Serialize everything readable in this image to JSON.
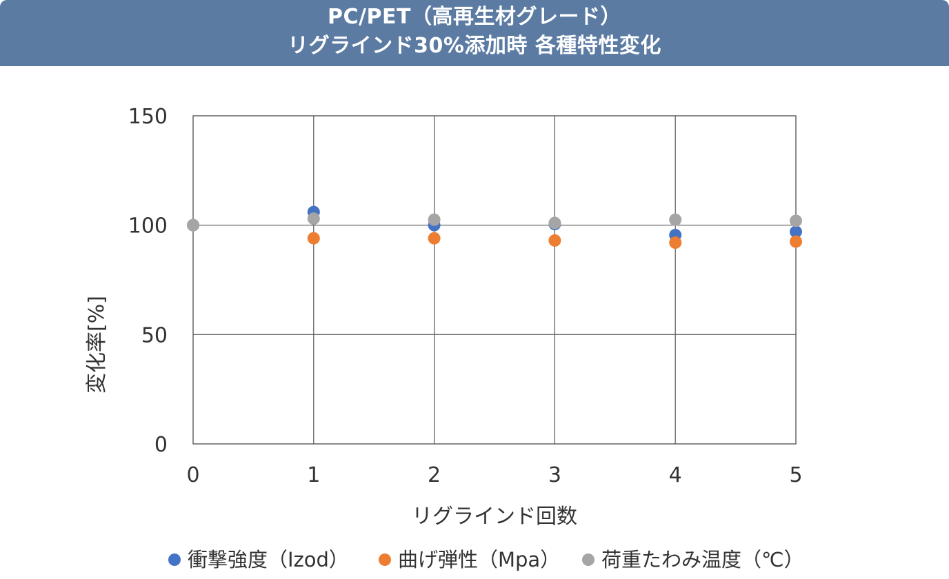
{
  "header": {
    "title_line1": "PC/PET（高再生材グレード）",
    "title_line2": "リグラインド30%添加時 各種特性変化"
  },
  "colors": {
    "header_bg": "#5b7ba3",
    "series": [
      "#4472c4",
      "#ed7d31",
      "#a5a5a5"
    ]
  },
  "chart_data": {
    "type": "scatter",
    "title": "PC/PET（高再生材グレード） リグラインド30%添加時 各種特性変化",
    "xlabel": "リグラインド回数",
    "ylabel": "変化率[%]",
    "xlim": [
      0,
      5
    ],
    "ylim": [
      0,
      150
    ],
    "xticks": [
      "0",
      "1",
      "2",
      "3",
      "4",
      "5"
    ],
    "yticks": [
      "0",
      "50",
      "100",
      "150"
    ],
    "grid": true,
    "legend_position": "bottom",
    "series": [
      {
        "name": "衝撃強度（Izod）",
        "x": [
          0,
          1,
          2,
          3,
          4,
          5
        ],
        "y": [
          100,
          106,
          100,
          100.5,
          95.5,
          97
        ]
      },
      {
        "name": "曲げ弾性（Mpa）",
        "x": [
          0,
          1,
          2,
          3,
          4,
          5
        ],
        "y": [
          100,
          94,
          94,
          93,
          92,
          92.5
        ]
      },
      {
        "name": "荷重たわみ温度（℃）",
        "x": [
          0,
          1,
          2,
          3,
          4,
          5
        ],
        "y": [
          100,
          103,
          102.5,
          101,
          102.5,
          102
        ]
      }
    ]
  }
}
